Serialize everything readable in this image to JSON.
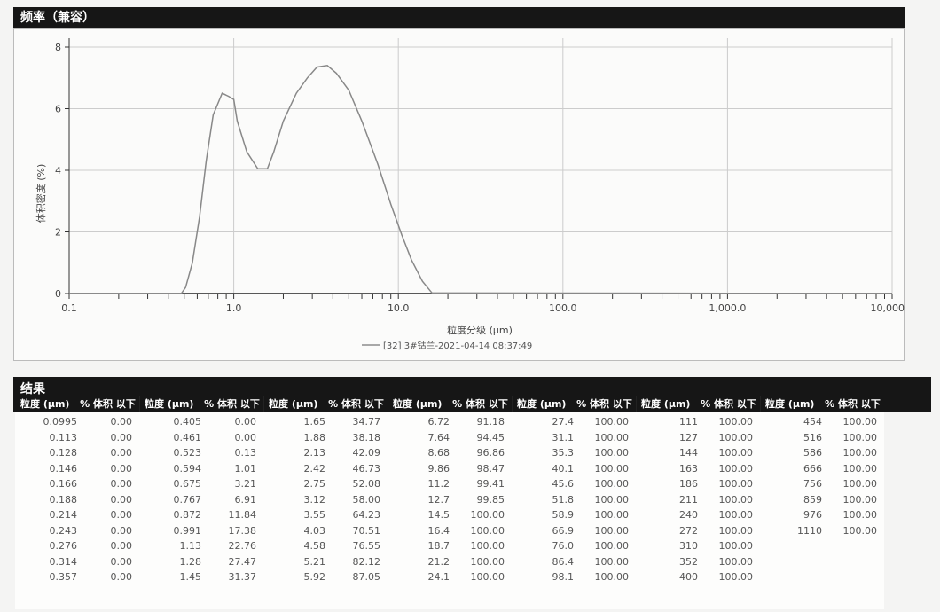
{
  "frequency_section": {
    "title": "频率（兼容）"
  },
  "results_section": {
    "title": "结果",
    "col_size": "粒度 (μm)",
    "col_pct": "% 体积 以下"
  },
  "chart_data": {
    "type": "line",
    "title": "",
    "xlabel": "粒度分级 (μm)",
    "ylabel": "体积密度 (%)",
    "xscale": "log",
    "xlim": [
      0.1,
      10000
    ],
    "ylim": [
      0,
      8
    ],
    "xticks": [
      "0.1",
      "1.0",
      "10.0",
      "100.0",
      "1,000.0",
      "10,000.0"
    ],
    "xtick_values": [
      0.1,
      1,
      10,
      100,
      1000,
      10000
    ],
    "yticks": [
      "0",
      "2",
      "4",
      "6",
      "8"
    ],
    "grid": true,
    "legend_position": "bottom-center",
    "series": [
      {
        "name": "[32] 3#钴兰-2021-04-14 08:37:49",
        "color": "#777777",
        "x": [
          0.1,
          0.48,
          0.51,
          0.56,
          0.62,
          0.68,
          0.75,
          0.85,
          0.93,
          1.0,
          1.05,
          1.2,
          1.4,
          1.6,
          1.75,
          2.0,
          2.4,
          2.8,
          3.2,
          3.7,
          4.2,
          5.0,
          6.0,
          7.5,
          9.0,
          10.5,
          12.0,
          14.0,
          16.0,
          10000
        ],
        "y": [
          0,
          0,
          0.2,
          1.0,
          2.5,
          4.3,
          5.8,
          6.5,
          6.4,
          6.3,
          5.6,
          4.6,
          4.05,
          4.05,
          4.6,
          5.6,
          6.5,
          7.0,
          7.35,
          7.4,
          7.15,
          6.6,
          5.6,
          4.2,
          2.9,
          1.9,
          1.1,
          0.4,
          0.02,
          0
        ]
      }
    ]
  },
  "results_table": [
    {
      "rows": [
        [
          "0.0995",
          "0.00"
        ],
        [
          "0.113",
          "0.00"
        ],
        [
          "0.128",
          "0.00"
        ],
        [
          "0.146",
          "0.00"
        ],
        [
          "0.166",
          "0.00"
        ],
        [
          "0.188",
          "0.00"
        ],
        [
          "0.214",
          "0.00"
        ],
        [
          "0.243",
          "0.00"
        ],
        [
          "0.276",
          "0.00"
        ],
        [
          "0.314",
          "0.00"
        ],
        [
          "0.357",
          "0.00"
        ]
      ]
    },
    {
      "rows": [
        [
          "0.405",
          "0.00"
        ],
        [
          "0.461",
          "0.00"
        ],
        [
          "0.523",
          "0.13"
        ],
        [
          "0.594",
          "1.01"
        ],
        [
          "0.675",
          "3.21"
        ],
        [
          "0.767",
          "6.91"
        ],
        [
          "0.872",
          "11.84"
        ],
        [
          "0.991",
          "17.38"
        ],
        [
          "1.13",
          "22.76"
        ],
        [
          "1.28",
          "27.47"
        ],
        [
          "1.45",
          "31.37"
        ]
      ]
    },
    {
      "rows": [
        [
          "1.65",
          "34.77"
        ],
        [
          "1.88",
          "38.18"
        ],
        [
          "2.13",
          "42.09"
        ],
        [
          "2.42",
          "46.73"
        ],
        [
          "2.75",
          "52.08"
        ],
        [
          "3.12",
          "58.00"
        ],
        [
          "3.55",
          "64.23"
        ],
        [
          "4.03",
          "70.51"
        ],
        [
          "4.58",
          "76.55"
        ],
        [
          "5.21",
          "82.12"
        ],
        [
          "5.92",
          "87.05"
        ]
      ]
    },
    {
      "rows": [
        [
          "6.72",
          "91.18"
        ],
        [
          "7.64",
          "94.45"
        ],
        [
          "8.68",
          "96.86"
        ],
        [
          "9.86",
          "98.47"
        ],
        [
          "11.2",
          "99.41"
        ],
        [
          "12.7",
          "99.85"
        ],
        [
          "14.5",
          "100.00"
        ],
        [
          "16.4",
          "100.00"
        ],
        [
          "18.7",
          "100.00"
        ],
        [
          "21.2",
          "100.00"
        ],
        [
          "24.1",
          "100.00"
        ]
      ]
    },
    {
      "rows": [
        [
          "27.4",
          "100.00"
        ],
        [
          "31.1",
          "100.00"
        ],
        [
          "35.3",
          "100.00"
        ],
        [
          "40.1",
          "100.00"
        ],
        [
          "45.6",
          "100.00"
        ],
        [
          "51.8",
          "100.00"
        ],
        [
          "58.9",
          "100.00"
        ],
        [
          "66.9",
          "100.00"
        ],
        [
          "76.0",
          "100.00"
        ],
        [
          "86.4",
          "100.00"
        ],
        [
          "98.1",
          "100.00"
        ]
      ]
    },
    {
      "rows": [
        [
          "111",
          "100.00"
        ],
        [
          "127",
          "100.00"
        ],
        [
          "144",
          "100.00"
        ],
        [
          "163",
          "100.00"
        ],
        [
          "186",
          "100.00"
        ],
        [
          "211",
          "100.00"
        ],
        [
          "240",
          "100.00"
        ],
        [
          "272",
          "100.00"
        ],
        [
          "310",
          "100.00"
        ],
        [
          "352",
          "100.00"
        ],
        [
          "400",
          "100.00"
        ]
      ]
    },
    {
      "rows": [
        [
          "454",
          "100.00"
        ],
        [
          "516",
          "100.00"
        ],
        [
          "586",
          "100.00"
        ],
        [
          "666",
          "100.00"
        ],
        [
          "756",
          "100.00"
        ],
        [
          "859",
          "100.00"
        ],
        [
          "976",
          "100.00"
        ],
        [
          "1110",
          "100.00"
        ]
      ]
    }
  ]
}
